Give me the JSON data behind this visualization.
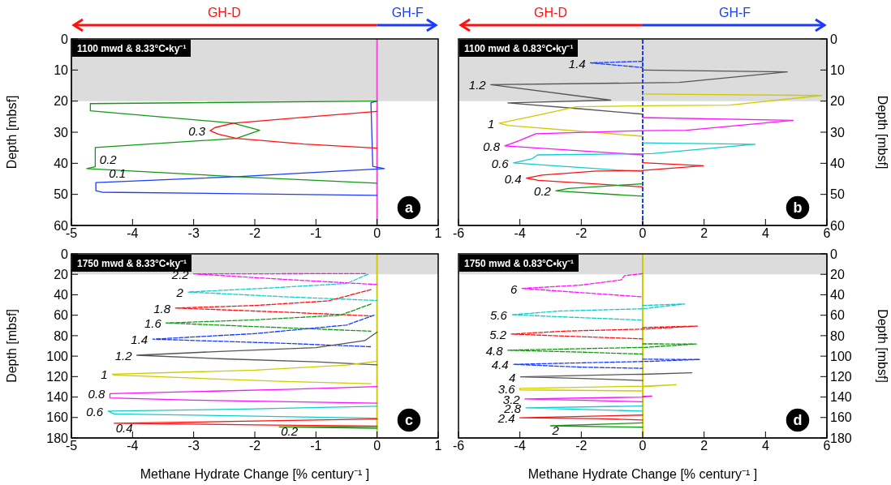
{
  "chart_data": [
    {
      "type": "line",
      "title": "1100 mwd & 8.33°C•ky⁻¹",
      "ylabel": "Depth [mbsf]",
      "xlim": [
        -5,
        1
      ],
      "xticks": [
        -5,
        -4,
        -3,
        -2,
        -1,
        0,
        1
      ],
      "ylim": [
        60,
        0
      ],
      "yticks": [
        0,
        10,
        20,
        30,
        40,
        50,
        60
      ],
      "bands": [
        {
          "axis": "y",
          "from": 0,
          "to": 20,
          "color": "#dcdcdc"
        }
      ],
      "ref_lines": [
        {
          "axis": "x",
          "value": 0,
          "color": "#ff44dd"
        }
      ],
      "annotations": [
        "GH-D",
        "GH-F",
        "a"
      ],
      "series": [
        {
          "name": "0.1",
          "color": "#1a3cff",
          "x": [
            0,
            -0.1,
            -0.07,
            0.12,
            -2.3,
            -4.6,
            -4.6,
            -4.5,
            0
          ],
          "values": [
            20,
            20.5,
            41,
            41.7,
            44.3,
            46.2,
            48.8,
            49.3,
            50.3
          ]
        },
        {
          "name": "0.2",
          "color": "#119911",
          "x": [
            0,
            -4.69,
            -4.69,
            -2.35,
            -1.92,
            -2.3,
            -4.61,
            -4.61,
            -4.75,
            -2.3,
            0
          ],
          "values": [
            20,
            20.8,
            23.1,
            27.1,
            29.4,
            32,
            34.9,
            41.1,
            41.7,
            44.3,
            46.4
          ]
        },
        {
          "name": "0.3",
          "color": "#ff1111",
          "x": [
            0,
            -1.2,
            -2.35,
            -2.65,
            -2.73,
            -2.6,
            -2.3,
            -1.2,
            0
          ],
          "values": [
            23.3,
            25.2,
            27.1,
            28.5,
            29.5,
            30.6,
            32,
            33.8,
            35.1
          ]
        }
      ]
    },
    {
      "type": "line",
      "title": "1100 mwd & 0.83°C•ky⁻¹",
      "ylabel": "Depth [mbsf]",
      "xlim": [
        -6,
        6
      ],
      "xticks": [
        -6,
        -4,
        -2,
        0,
        2,
        4,
        6
      ],
      "ylim": [
        60,
        0
      ],
      "yticks": [
        0,
        10,
        20,
        30,
        40,
        50,
        60
      ],
      "bands": [
        {
          "axis": "y",
          "from": 0,
          "to": 20,
          "color": "#dcdcdc"
        }
      ],
      "ref_lines": [
        {
          "axis": "x",
          "value": 0,
          "color": "#1a3cff",
          "line_style": "dashed"
        }
      ],
      "annotations": [
        "GH-D",
        "GH-F",
        "b"
      ],
      "series": [
        {
          "name": "1.4",
          "color": "#1a3cff",
          "line_style": "dashed",
          "x": [
            0,
            -1.7,
            0
          ],
          "values": [
            7.2,
            7.7,
            9.2
          ]
        },
        {
          "name": "1.2",
          "color": "#555555",
          "x": [
            0,
            4.71,
            1.19,
            -4.95,
            -1.04,
            -4.39,
            -2,
            0
          ],
          "values": [
            10,
            10.6,
            14,
            14.7,
            19.7,
            20.6,
            22.5,
            24.2
          ]
        },
        {
          "name": "1",
          "color": "#cccc00",
          "x": [
            0,
            5.83,
            2.82,
            0,
            -2.16,
            -3.4,
            -4.67,
            -4.4,
            0
          ],
          "values": [
            17.7,
            18.2,
            21.3,
            21.5,
            21.8,
            24.5,
            27.1,
            27.8,
            31.3
          ]
        },
        {
          "name": "0.8",
          "color": "#ff11ff",
          "x": [
            0,
            4.9,
            1.42,
            0,
            -3.48,
            -4.02,
            -4.49,
            0
          ],
          "values": [
            25.3,
            26.2,
            29.4,
            29.5,
            30.5,
            32.7,
            34.4,
            37.3
          ]
        },
        {
          "name": "0.6",
          "color": "#11cccc",
          "x": [
            0,
            3.66,
            0.31,
            -3.42,
            -3.6,
            -4.21,
            0
          ],
          "values": [
            33.4,
            33.9,
            36.9,
            37.3,
            38.5,
            39.9,
            42.7
          ]
        },
        {
          "name": "0.4",
          "color": "#ff1111",
          "x": [
            0,
            1.98,
            0,
            -1.5,
            -3.28,
            -3.79,
            -3.4,
            0
          ],
          "values": [
            39.8,
            40.8,
            42.3,
            42.5,
            43.8,
            44.8,
            45.5,
            47.6
          ]
        },
        {
          "name": "0.2",
          "color": "#119911",
          "x": [
            0,
            -2.42,
            -2.83,
            0
          ],
          "values": [
            46.6,
            48.1,
            48.9,
            50.6
          ]
        }
      ]
    },
    {
      "type": "line",
      "title": "1750 mwd & 8.33°C•ky⁻¹",
      "xlabel": "Methane Hydrate Change [% century⁻¹ ]",
      "ylabel": "Depth [mbsf]",
      "xlim": [
        -5,
        1
      ],
      "xticks": [
        -5,
        -4,
        -3,
        -2,
        -1,
        0,
        1
      ],
      "ylim": [
        180,
        0
      ],
      "yticks": [
        0,
        20,
        40,
        60,
        80,
        100,
        120,
        140,
        160,
        180
      ],
      "bands": [
        {
          "axis": "y",
          "from": 0,
          "to": 20,
          "color": "#dcdcdc"
        }
      ],
      "ref_lines": [
        {
          "axis": "x",
          "value": 0,
          "color": "#cccc00"
        }
      ],
      "annotations": [
        "c"
      ],
      "series": [
        {
          "name": "2.2",
          "color": "#ff11ff",
          "line_style": "dashed",
          "x": [
            -0.19,
            -3,
            -1.5,
            0
          ],
          "values": [
            19.3,
            19.6,
            25,
            30
          ]
        },
        {
          "name": "2",
          "color": "#11cccc",
          "line_style": "dashed",
          "x": [
            -0.15,
            -0.5,
            -1.8,
            -3.09,
            -1.5,
            0
          ],
          "values": [
            20,
            29,
            33.5,
            37.3,
            42,
            45.6
          ]
        },
        {
          "name": "1.8",
          "color": "#ff1111",
          "line_style": "dashed",
          "x": [
            -0.1,
            -0.8,
            -2,
            -3.3,
            -1.5,
            -0.1
          ],
          "values": [
            35,
            46,
            50.5,
            53,
            57,
            60.7
          ]
        },
        {
          "name": "1.6",
          "color": "#119911",
          "line_style": "dashed",
          "x": [
            -0.1,
            -0.6,
            -2,
            -3.45,
            -1.5,
            -0.1
          ],
          "values": [
            49,
            60,
            64.5,
            67.6,
            72.3,
            75.6
          ]
        },
        {
          "name": "1.4",
          "color": "#1a3cff",
          "line_style": "dashed",
          "x": [
            -0.05,
            -0.5,
            -2,
            -3.67,
            -1.5,
            -0.1
          ],
          "values": [
            60,
            69.6,
            78,
            83.4,
            87.5,
            90.8
          ]
        },
        {
          "name": "1.2",
          "color": "#555555",
          "x": [
            0,
            -0.2,
            -1,
            -2.5,
            -3.93,
            -2.5,
            -1,
            0
          ],
          "values": [
            76.5,
            84.8,
            91.7,
            95.2,
            99.1,
            102.7,
            105.5,
            108.5
          ]
        },
        {
          "name": "1",
          "color": "#cccc00",
          "x": [
            0,
            -0.5,
            -2,
            -4.33,
            -4.3,
            -3,
            -1.5,
            -0.1
          ],
          "values": [
            104.9,
            108.8,
            113.7,
            117.6,
            118.5,
            121.5,
            124.8,
            127
          ]
        },
        {
          "name": "0.8",
          "color": "#ff11ff",
          "x": [
            0,
            -1.5,
            -4.37,
            -4.37,
            -3,
            0
          ],
          "values": [
            129.8,
            132.5,
            136.7,
            140.8,
            143,
            146
          ]
        },
        {
          "name": "0.6",
          "color": "#11cccc",
          "x": [
            0,
            -2,
            -4.4,
            -4.3,
            -2,
            0
          ],
          "values": [
            149,
            151.6,
            153.8,
            156.5,
            158.7,
            160.7
          ]
        },
        {
          "name": "0.4",
          "color": "#ff1111",
          "x": [
            0,
            -2,
            -4.3,
            -2,
            0
          ],
          "values": [
            161.5,
            163.4,
            165.7,
            167.2,
            168.4
          ]
        },
        {
          "name": "0.2",
          "color": "#119911",
          "x": [
            0,
            -1.6,
            0
          ],
          "values": [
            168.8,
            169.2,
            170.5
          ]
        }
      ]
    },
    {
      "type": "line",
      "title": "1750 mwd & 0.83°C•ky⁻¹",
      "xlabel": "Methane Hydrate Change [% century⁻¹ ]",
      "ylabel": "Depth [mbsf]",
      "xlim": [
        -6,
        6
      ],
      "xticks": [
        -6,
        -4,
        -2,
        0,
        2,
        4,
        6
      ],
      "ylim": [
        180,
        0
      ],
      "yticks": [
        0,
        20,
        40,
        60,
        80,
        100,
        120,
        140,
        160,
        180
      ],
      "bands": [
        {
          "axis": "y",
          "from": 0,
          "to": 20,
          "color": "#dcdcdc"
        }
      ],
      "ref_lines": [
        {
          "axis": "x",
          "value": 0,
          "color": "#cccc00"
        }
      ],
      "annotations": [
        "d"
      ],
      "series": [
        {
          "name": "6",
          "color": "#ff11ff",
          "line_style": "dashed",
          "x": [
            0,
            -0.59,
            -0.7,
            -2,
            -3.93,
            -2,
            0
          ],
          "values": [
            19.4,
            21.3,
            25.5,
            30.5,
            33.8,
            37.9,
            42.1
          ]
        },
        {
          "name": "5.6",
          "color": "#11cccc",
          "line_style": "dashed",
          "x": [
            0,
            1.37,
            0,
            -2.72,
            -4.26,
            -2.7,
            0
          ],
          "values": [
            50.5,
            49,
            53.7,
            55.9,
            59.5,
            61.5,
            64.8
          ]
        },
        {
          "name": "5.2",
          "color": "#ff1111",
          "line_style": "dashed",
          "x": [
            0,
            1.79,
            0.1,
            -2.5,
            -4.28,
            -2,
            0
          ],
          "values": [
            72,
            70.6,
            73.5,
            75.5,
            78.4,
            81,
            83.1
          ]
        },
        {
          "name": "4.8",
          "color": "#119911",
          "line_style": "dashed",
          "x": [
            0,
            1.75,
            0.1,
            -4.4,
            -2,
            0
          ],
          "values": [
            88,
            88.1,
            91.4,
            94.2,
            96.1,
            98
          ]
        },
        {
          "name": "4.4",
          "color": "#1a3cff",
          "line_style": "dashed",
          "x": [
            0,
            1.85,
            0.1,
            -4.21,
            -2,
            0
          ],
          "values": [
            103,
            103.3,
            105.2,
            108,
            110.8,
            111.9
          ]
        },
        {
          "name": "4",
          "color": "#555555",
          "x": [
            0,
            1.6,
            0,
            -3.98,
            -2,
            0
          ],
          "values": [
            117.8,
            116.3,
            117.6,
            120.2,
            121.8,
            123.8
          ]
        },
        {
          "name": "3.6",
          "color": "#cccc00",
          "x": [
            0,
            1.09,
            0,
            -4,
            -4,
            0
          ],
          "values": [
            130,
            127.9,
            129.3,
            131.5,
            133,
            134
          ]
        },
        {
          "name": "3.2",
          "color": "#ff11ff",
          "x": [
            0,
            0.3,
            0,
            -3.84,
            0
          ],
          "values": [
            139.3,
            139,
            140,
            141.8,
            144.6
          ]
        },
        {
          "name": "2.8",
          "color": "#11cccc",
          "x": [
            0,
            -3.8,
            0
          ],
          "values": [
            148.7,
            150.6,
            153.7
          ]
        },
        {
          "name": "2.4",
          "color": "#ff1111",
          "x": [
            0,
            -4,
            -1.5,
            0
          ],
          "values": [
            157.6,
            160.3,
            161,
            162.5
          ]
        },
        {
          "name": "2",
          "color": "#119911",
          "x": [
            0,
            -3,
            0
          ],
          "values": [
            165.3,
            168.1,
            169.5
          ]
        }
      ]
    }
  ]
}
